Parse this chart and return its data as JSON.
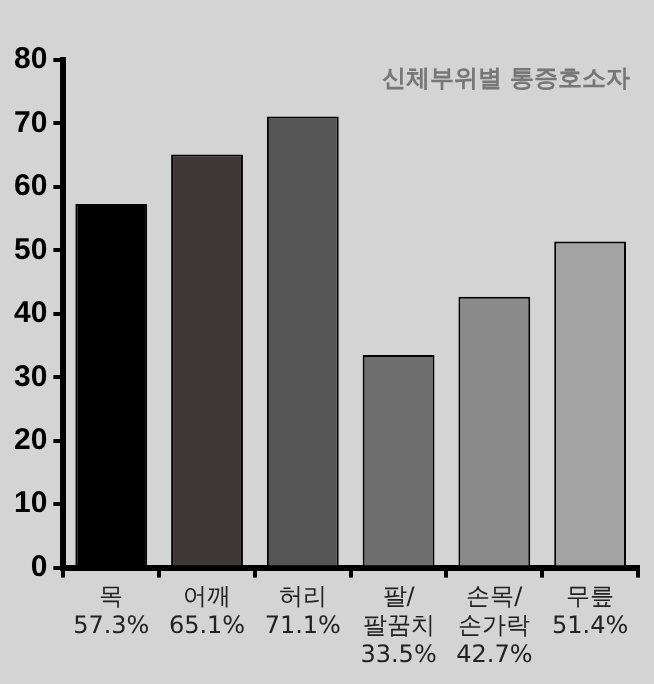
{
  "chart_data": {
    "type": "bar",
    "title": "신체부위별 통증호소자",
    "categories": [
      "목",
      "어깨",
      "허리",
      "팔/팔꿈치",
      "손목/손가락",
      "무릎"
    ],
    "values": [
      57.3,
      65.1,
      71.1,
      33.5,
      42.7,
      51.4
    ],
    "value_labels": [
      "57.3%",
      "65.1%",
      "71.1%",
      "33.5%",
      "42.7%",
      "51.4%"
    ],
    "colors": [
      "#000000",
      "#3d3836",
      "#555555",
      "#6e6e6e",
      "#8a8a8a",
      "#a3a3a3"
    ],
    "ylim": [
      0,
      80
    ],
    "yticks": [
      0,
      10,
      20,
      30,
      40,
      50,
      60,
      70,
      80
    ],
    "grid": false,
    "legend": false
  }
}
